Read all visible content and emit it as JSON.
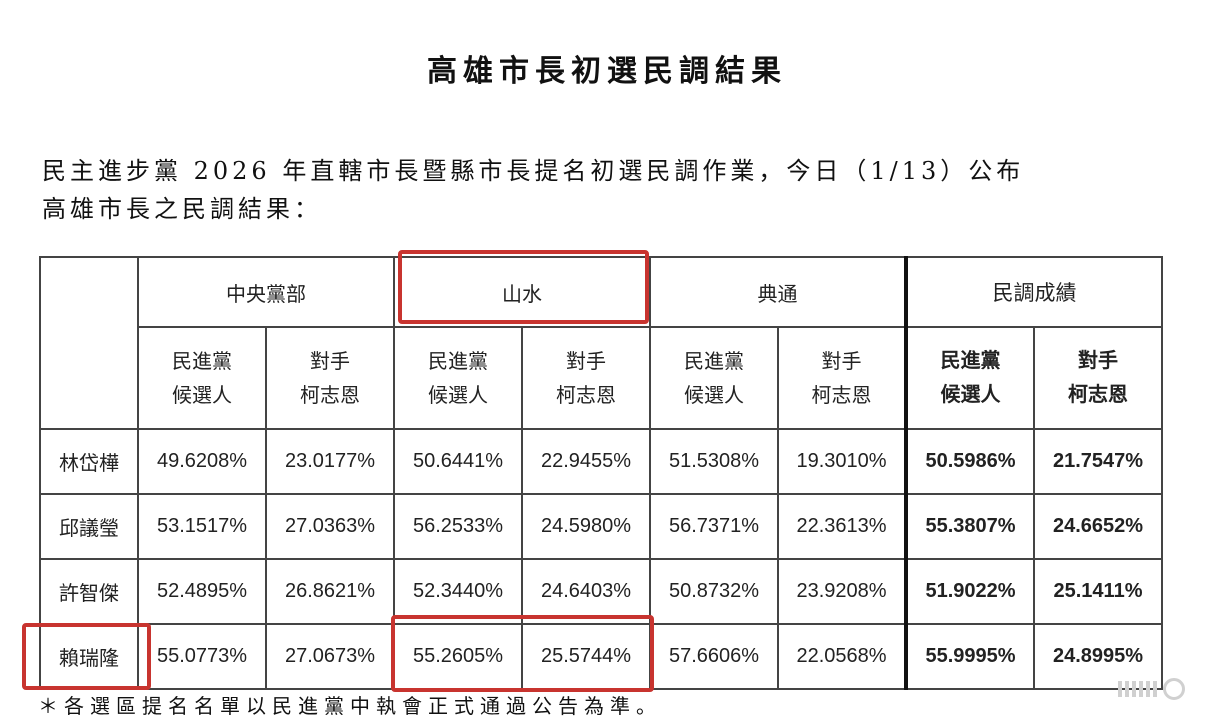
{
  "title": "高雄市長初選民調結果",
  "intro": {
    "line1": "民主進步黨 2026 年直轄市長暨縣市長提名初選民調作業，今日（1/13）公布",
    "line2": "高雄市長之民調結果："
  },
  "table": {
    "groups": [
      "中央黨部",
      "山水",
      "典通",
      "民調成績"
    ],
    "sub_headers": [
      {
        "line1": "民進黨",
        "line2": "候選人"
      },
      {
        "line1": "對手",
        "line2": "柯志恩"
      }
    ],
    "rows": [
      {
        "name": "林岱樺",
        "values": [
          "49.6208%",
          "23.0177%",
          "50.6441%",
          "22.9455%",
          "51.5308%",
          "19.3010%",
          "50.5986%",
          "21.7547%"
        ]
      },
      {
        "name": "邱議瑩",
        "values": [
          "53.1517%",
          "27.0363%",
          "56.2533%",
          "24.5980%",
          "56.7371%",
          "22.3613%",
          "55.3807%",
          "24.6652%"
        ]
      },
      {
        "name": "許智傑",
        "values": [
          "52.4895%",
          "26.8621%",
          "52.3440%",
          "24.6403%",
          "50.8732%",
          "23.9208%",
          "51.9022%",
          "25.1411%"
        ]
      },
      {
        "name": "賴瑞隆",
        "values": [
          "55.0773%",
          "27.0673%",
          "55.2605%",
          "25.5744%",
          "57.6606%",
          "22.0568%",
          "55.9995%",
          "24.8995%"
        ]
      }
    ]
  },
  "footnote": "＊各選區提名名單以民進黨中執會正式通過公告為準。",
  "highlight_color": "#c8342f"
}
